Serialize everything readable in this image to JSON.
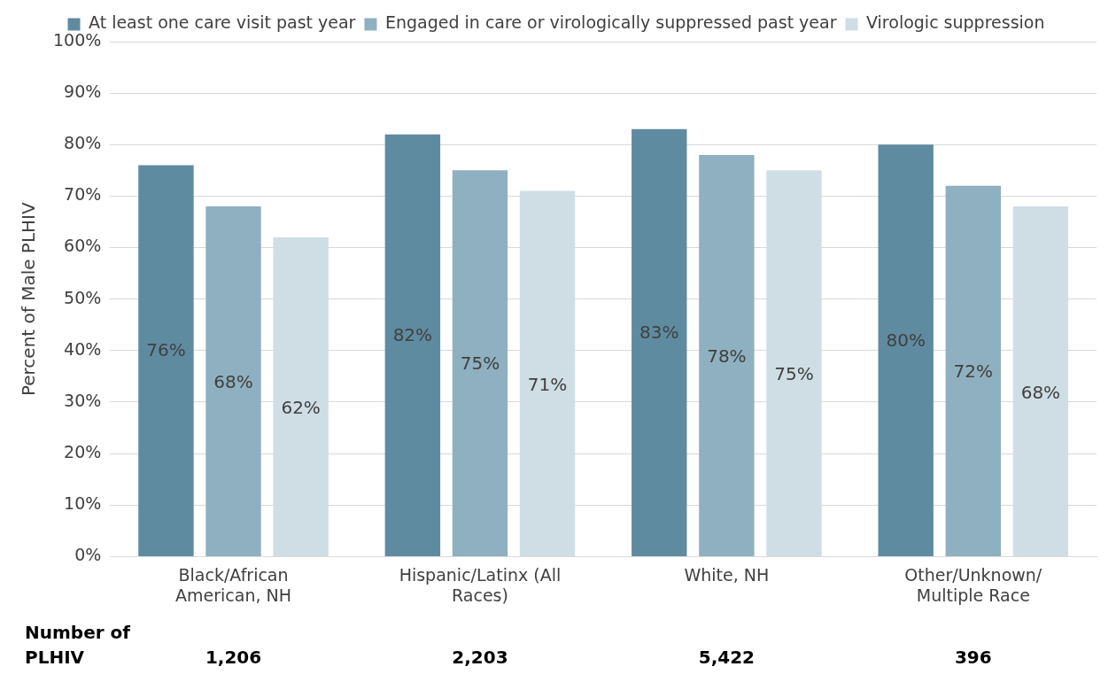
{
  "chart_data": {
    "type": "bar",
    "ylabel": "Percent of Male PLHIV",
    "categories": [
      "Black/African American, NH",
      "Hispanic/Latinx (All Races)",
      "White, NH",
      "Other/Unknown/ Multiple Race"
    ],
    "series": [
      {
        "name": "At least one care visit past year",
        "color": "#5f8ba1",
        "values": [
          76,
          82,
          83,
          80
        ],
        "value_labels": [
          "76%",
          "82%",
          "83%",
          "80%"
        ]
      },
      {
        "name": "Engaged in care or virologically suppressed past year",
        "color": "#8fb0c0",
        "values": [
          68,
          75,
          78,
          72
        ],
        "value_labels": [
          "68%",
          "75%",
          "78%",
          "72%"
        ]
      },
      {
        "name": "Virologic suppression",
        "color": "#cfdee5",
        "values": [
          62,
          71,
          75,
          68
        ],
        "value_labels": [
          "62%",
          "71%",
          "75%",
          "68%"
        ]
      }
    ],
    "ylim": [
      0,
      100
    ],
    "yticks": [
      {
        "value": 0,
        "label": "0%"
      },
      {
        "value": 10,
        "label": "10%"
      },
      {
        "value": 20,
        "label": "20%"
      },
      {
        "value": 30,
        "label": "30%"
      },
      {
        "value": 40,
        "label": "40%"
      },
      {
        "value": 50,
        "label": "50%"
      },
      {
        "value": 60,
        "label": "60%"
      },
      {
        "value": 70,
        "label": "70%"
      },
      {
        "value": 80,
        "label": "80%"
      },
      {
        "value": 90,
        "label": "90%"
      },
      {
        "value": 100,
        "label": "100%"
      }
    ],
    "grid": "y",
    "legend": "top",
    "annotations": [
      "Number of PLHIV",
      "1,206",
      "2,203",
      "5,422",
      "396"
    ]
  }
}
